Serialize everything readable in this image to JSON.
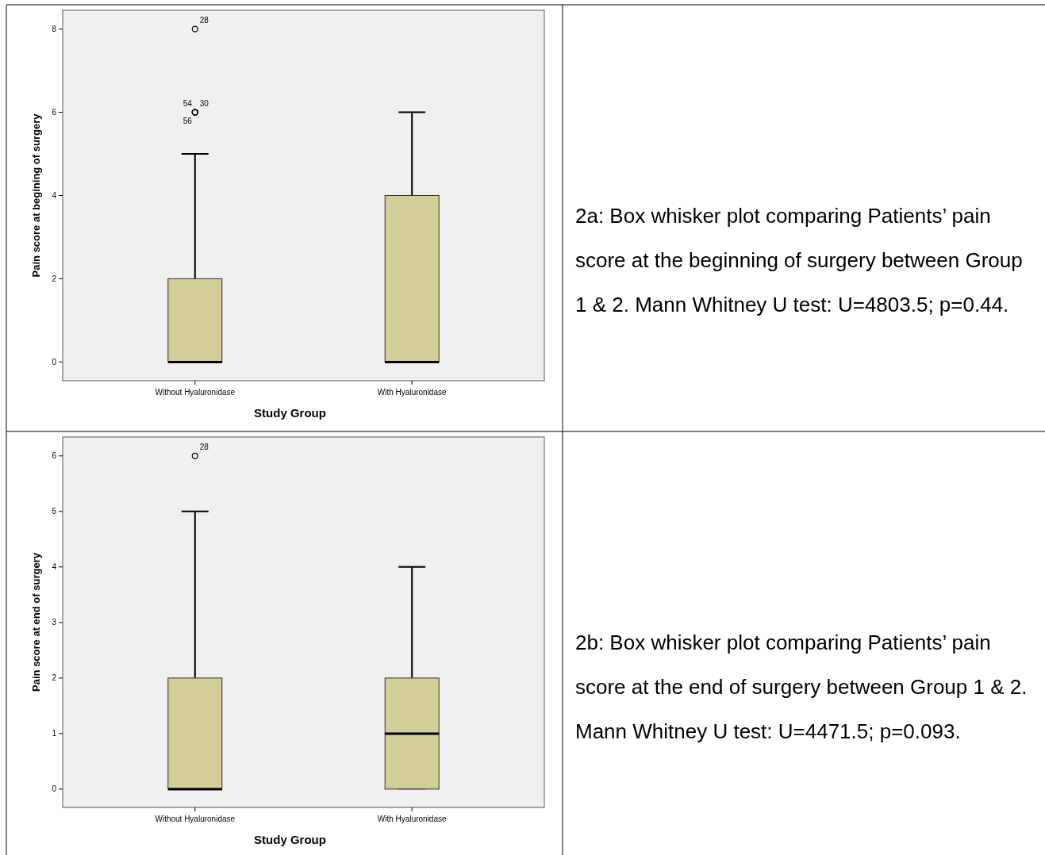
{
  "chart_data": [
    {
      "type": "box",
      "xlabel": "Study Group",
      "ylabel": "Pain score at begining of surgery",
      "categories": [
        "Without Hyaluronidase",
        "With Hyaluronidase"
      ],
      "color": "#d3cd97",
      "ylim": [
        -0.45,
        8.45
      ],
      "yticks": [
        0,
        2,
        4,
        6,
        8
      ],
      "boxes": [
        {
          "low": 0,
          "q1": 0,
          "median": 0,
          "q3": 2,
          "high": 5,
          "outliers": [
            8,
            6,
            6,
            6
          ]
        },
        {
          "low": 0,
          "q1": 0,
          "median": 0,
          "q3": 4,
          "high": 6
        }
      ],
      "annotations": [
        "28",
        "30",
        "54",
        "56",
        "2a: Box whisker plot comparing Patients’ pain score at the beginning of surgery between Group 1 & 2. Mann Whitney U test: U=4803.5; p=0.44."
      ]
    },
    {
      "type": "box",
      "xlabel": "Study Group",
      "ylabel": "Pain score at end of surgery",
      "categories": [
        "Without Hyaluronidase",
        "With Hyaluronidase"
      ],
      "color": "#d3cd97",
      "ylim": [
        -0.33,
        6.34
      ],
      "yticks": [
        0,
        1,
        2,
        3,
        4,
        5,
        6
      ],
      "boxes": [
        {
          "low": 0,
          "q1": 0,
          "median": 0,
          "q3": 2,
          "high": 5,
          "outliers": [
            6
          ]
        },
        {
          "low": 0,
          "q1": 0,
          "median": 1,
          "q3": 2,
          "high": 4
        }
      ],
      "annotations": [
        "28",
        "2b: Box whisker plot comparing Patients’ pain score at the end of surgery between Group 1 & 2. Mann Whitney U test: U=4471.5; p=0.093."
      ]
    }
  ]
}
